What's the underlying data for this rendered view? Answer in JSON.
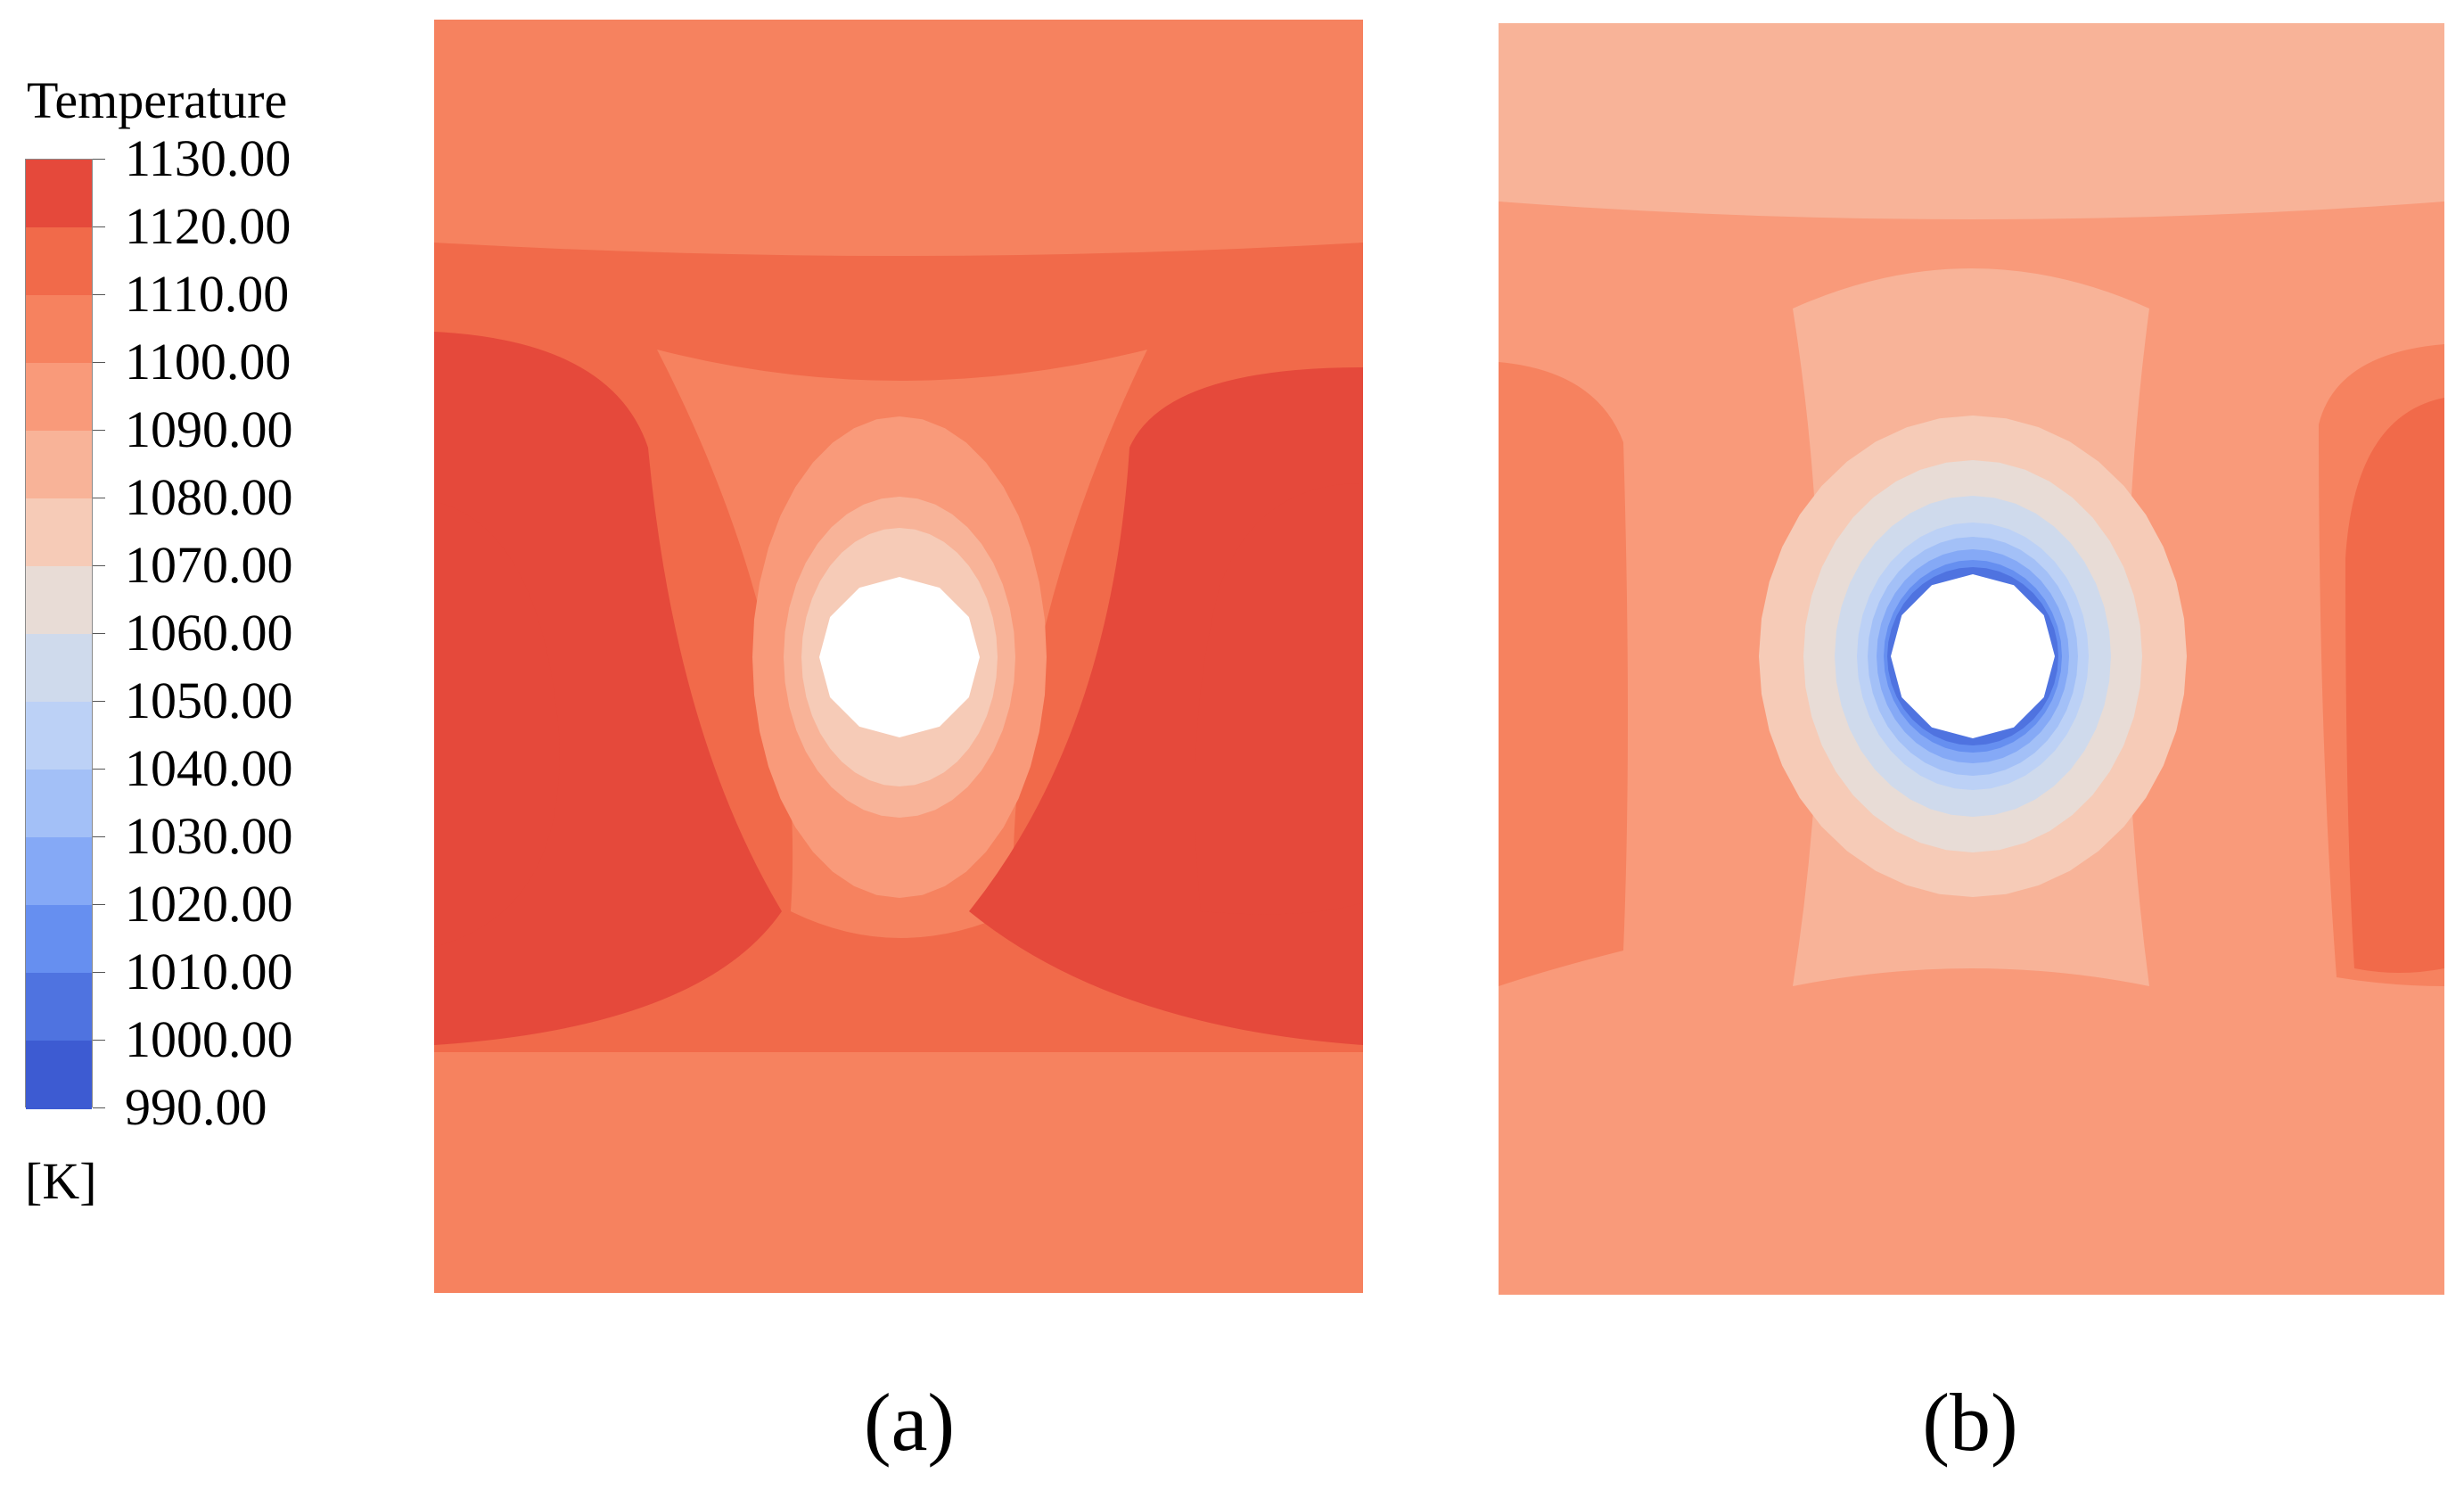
{
  "chart_data": {
    "type": "heatmap",
    "title": "",
    "legend": {
      "title": "Temperature",
      "unit": "[K]",
      "levels": [
        990,
        1000,
        1010,
        1020,
        1030,
        1040,
        1050,
        1060,
        1070,
        1080,
        1090,
        1100,
        1110,
        1120,
        1130
      ],
      "tick_labels": [
        "1130.00",
        "1120.00",
        "1110.00",
        "1100.00",
        "1090.00",
        "1080.00",
        "1070.00",
        "1060.00",
        "1050.00",
        "1040.00",
        "1030.00",
        "1020.00",
        "1010.00",
        "1000.00",
        "990.00"
      ],
      "band_colors": [
        "#3d5bd2",
        "#4f73e0",
        "#668ff0",
        "#85a9f6",
        "#a3c0f7",
        "#bcd1f6",
        "#cfdaec",
        "#e8dcd6",
        "#f6cbb7",
        "#f8b398",
        "#f99a7a",
        "#f6825f",
        "#f16a4a",
        "#e5493b"
      ],
      "placement": "left"
    },
    "panels": [
      {
        "label": "(a)",
        "hole_wall_band_temperature_K": 1070,
        "contour_layers_K": [
          1080,
          1090,
          1100,
          1110,
          1120,
          1130
        ]
      },
      {
        "label": "(b)",
        "hole_wall_band_temperature_K": 1000,
        "contour_layers_K": [
          1080,
          1090,
          1100,
          1110
        ]
      }
    ]
  }
}
